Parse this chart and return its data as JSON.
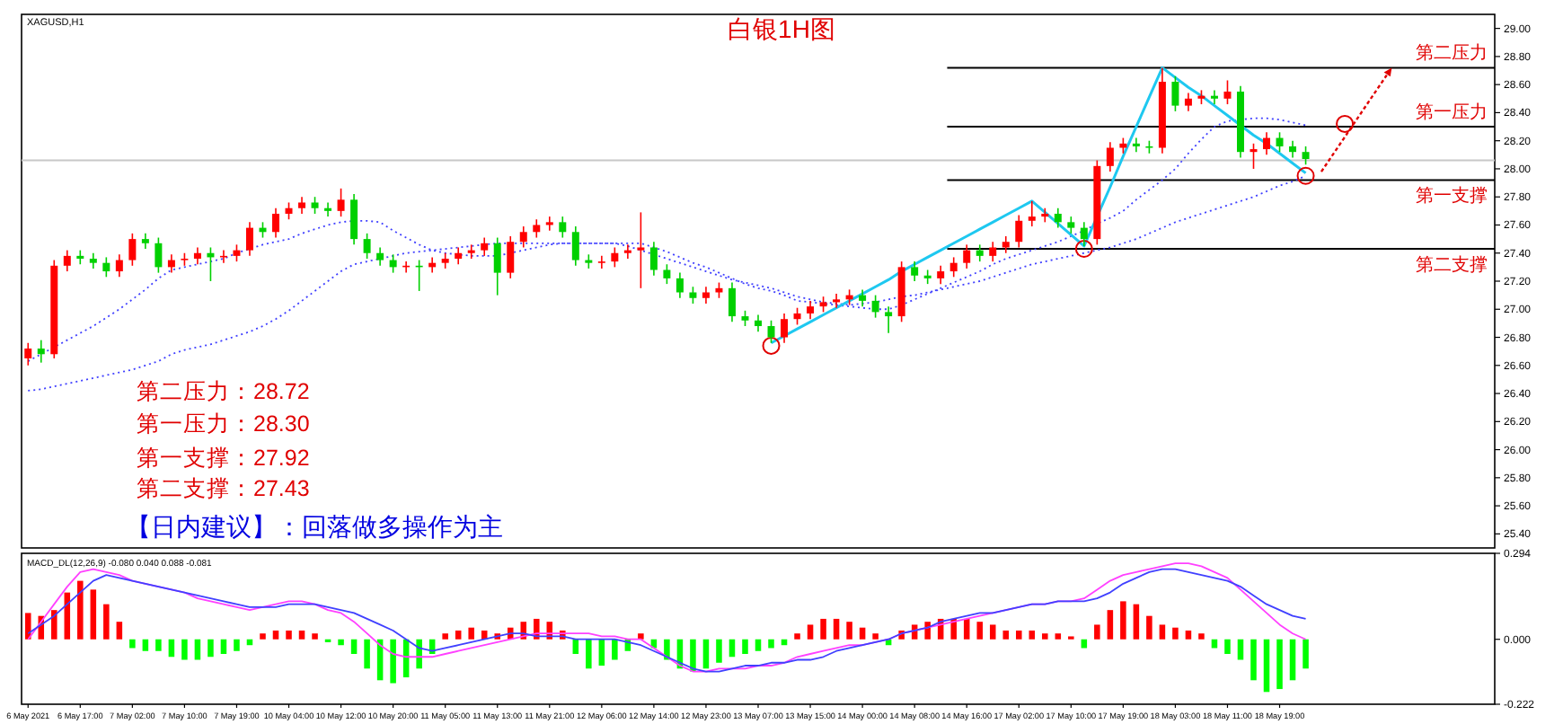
{
  "chart_data": [
    {
      "type": "candlestick",
      "title": "白银1H图",
      "subtitle": "XAGUSD,H1",
      "annotations": [
        "第二压力：28.72",
        "第一压力：28.30",
        "第一支撑：27.92",
        "第二支撑：27.43",
        "【日内建议】：回落做多操作为主"
      ],
      "categories": [
        null,
        null,
        null,
        null,
        null,
        null,
        null,
        null,
        null,
        null,
        null,
        null,
        null,
        null,
        null,
        null,
        null,
        null,
        null,
        null,
        null,
        null,
        null,
        null,
        null,
        null,
        null,
        null,
        null,
        null,
        null,
        null,
        null,
        null,
        null,
        null,
        null,
        null,
        null,
        null,
        null,
        null,
        null,
        null,
        null,
        null,
        null,
        null,
        null,
        null,
        null,
        null,
        null,
        null,
        null,
        null,
        null,
        null,
        null,
        null,
        null,
        null,
        null,
        null,
        null,
        null,
        null,
        null,
        null,
        null,
        null,
        null,
        null,
        null,
        null,
        null,
        null,
        null,
        null,
        null,
        null,
        null,
        null,
        null,
        null,
        null,
        null,
        null,
        null,
        null,
        null,
        null,
        null,
        null,
        null,
        null,
        null,
        null,
        null,
        null,
        null,
        null,
        null,
        null,
        null,
        null,
        null,
        null,
        null,
        null,
        null,
        null,
        null
      ],
      "ohlc": [
        [
          26.65,
          26.76,
          26.6,
          26.72
        ],
        [
          26.72,
          26.78,
          26.62,
          26.68
        ],
        [
          26.68,
          27.35,
          26.65,
          27.31
        ],
        [
          27.31,
          27.42,
          27.27,
          27.38
        ],
        [
          27.38,
          27.42,
          27.32,
          27.36
        ],
        [
          27.36,
          27.4,
          27.29,
          27.33
        ],
        [
          27.33,
          27.37,
          27.23,
          27.27
        ],
        [
          27.27,
          27.39,
          27.23,
          27.35
        ],
        [
          27.35,
          27.54,
          27.31,
          27.5
        ],
        [
          27.5,
          27.54,
          27.43,
          27.47
        ],
        [
          27.47,
          27.51,
          27.26,
          27.3
        ],
        [
          27.3,
          27.39,
          27.26,
          27.35
        ],
        [
          27.35,
          27.4,
          27.31,
          27.36
        ],
        [
          27.36,
          27.44,
          27.32,
          27.4
        ],
        [
          27.4,
          27.44,
          27.2,
          27.37
        ],
        [
          27.37,
          27.42,
          27.33,
          27.38
        ],
        [
          27.38,
          27.46,
          27.34,
          27.42
        ],
        [
          27.42,
          27.62,
          27.38,
          27.58
        ],
        [
          27.58,
          27.62,
          27.51,
          27.55
        ],
        [
          27.55,
          27.72,
          27.51,
          27.68
        ],
        [
          27.68,
          27.76,
          27.64,
          27.72
        ],
        [
          27.72,
          27.8,
          27.68,
          27.76
        ],
        [
          27.76,
          27.8,
          27.68,
          27.72
        ],
        [
          27.72,
          27.76,
          27.66,
          27.7
        ],
        [
          27.7,
          27.86,
          27.66,
          27.78
        ],
        [
          27.78,
          27.82,
          27.46,
          27.5
        ],
        [
          27.5,
          27.54,
          27.36,
          27.4
        ],
        [
          27.4,
          27.44,
          27.31,
          27.35
        ],
        [
          27.35,
          27.39,
          27.26,
          27.3
        ],
        [
          27.3,
          27.34,
          27.26,
          27.31
        ],
        [
          27.31,
          27.35,
          27.13,
          27.3
        ],
        [
          27.3,
          27.37,
          27.26,
          27.33
        ],
        [
          27.33,
          27.4,
          27.29,
          27.36
        ],
        [
          27.36,
          27.44,
          27.32,
          27.4
        ],
        [
          27.4,
          27.46,
          27.36,
          27.42
        ],
        [
          27.42,
          27.51,
          27.38,
          27.47
        ],
        [
          27.47,
          27.51,
          27.1,
          27.26
        ],
        [
          27.26,
          27.52,
          27.22,
          27.48
        ],
        [
          27.48,
          27.59,
          27.44,
          27.55
        ],
        [
          27.55,
          27.64,
          27.51,
          27.6
        ],
        [
          27.6,
          27.66,
          27.56,
          27.62
        ],
        [
          27.62,
          27.66,
          27.51,
          27.55
        ],
        [
          27.55,
          27.59,
          27.31,
          27.35
        ],
        [
          27.35,
          27.39,
          27.29,
          27.33
        ],
        [
          27.33,
          27.38,
          27.29,
          27.34
        ],
        [
          27.34,
          27.44,
          27.3,
          27.4
        ],
        [
          27.4,
          27.46,
          27.36,
          27.42
        ],
        [
          27.42,
          27.69,
          27.15,
          27.44
        ],
        [
          27.44,
          27.48,
          27.24,
          27.28
        ],
        [
          27.28,
          27.32,
          27.18,
          27.22
        ],
        [
          27.22,
          27.26,
          27.08,
          27.12
        ],
        [
          27.12,
          27.16,
          27.04,
          27.08
        ],
        [
          27.08,
          27.16,
          27.04,
          27.12
        ],
        [
          27.12,
          27.19,
          27.08,
          27.15
        ],
        [
          27.15,
          27.19,
          26.91,
          26.95
        ],
        [
          26.95,
          26.99,
          26.88,
          26.92
        ],
        [
          26.92,
          26.96,
          26.84,
          26.88
        ],
        [
          26.88,
          26.92,
          26.76,
          26.8
        ],
        [
          26.8,
          26.97,
          26.76,
          26.93
        ],
        [
          26.93,
          27.01,
          26.89,
          26.97
        ],
        [
          26.97,
          27.06,
          26.93,
          27.02
        ],
        [
          27.02,
          27.09,
          26.98,
          27.05
        ],
        [
          27.05,
          27.11,
          27.01,
          27.07
        ],
        [
          27.07,
          27.14,
          27.03,
          27.1
        ],
        [
          27.1,
          27.14,
          27.02,
          27.06
        ],
        [
          27.06,
          27.1,
          26.94,
          26.98
        ],
        [
          26.98,
          27.02,
          26.83,
          26.95
        ],
        [
          26.95,
          27.34,
          26.91,
          27.3
        ],
        [
          27.3,
          27.34,
          27.2,
          27.24
        ],
        [
          27.24,
          27.28,
          27.18,
          27.22
        ],
        [
          27.22,
          27.31,
          27.18,
          27.27
        ],
        [
          27.27,
          27.37,
          27.23,
          27.33
        ],
        [
          27.33,
          27.46,
          27.29,
          27.42
        ],
        [
          27.42,
          27.46,
          27.34,
          27.38
        ],
        [
          27.38,
          27.48,
          27.34,
          27.44
        ],
        [
          27.44,
          27.52,
          27.4,
          27.48
        ],
        [
          27.48,
          27.67,
          27.44,
          27.63
        ],
        [
          27.63,
          27.77,
          27.59,
          27.66
        ],
        [
          27.66,
          27.72,
          27.62,
          27.68
        ],
        [
          27.68,
          27.72,
          27.58,
          27.62
        ],
        [
          27.62,
          27.66,
          27.54,
          27.58
        ],
        [
          27.58,
          27.62,
          27.45,
          27.5
        ],
        [
          27.5,
          28.06,
          27.46,
          28.02
        ],
        [
          28.02,
          28.19,
          27.98,
          28.15
        ],
        [
          28.15,
          28.22,
          28.11,
          28.18
        ],
        [
          28.18,
          28.22,
          28.12,
          28.16
        ],
        [
          28.16,
          28.2,
          28.11,
          28.15
        ],
        [
          28.15,
          28.72,
          28.11,
          28.62
        ],
        [
          28.62,
          28.66,
          28.41,
          28.45
        ],
        [
          28.45,
          28.54,
          28.41,
          28.5
        ],
        [
          28.5,
          28.56,
          28.46,
          28.52
        ],
        [
          28.52,
          28.56,
          28.46,
          28.5
        ],
        [
          28.5,
          28.63,
          28.46,
          28.55
        ],
        [
          28.55,
          28.59,
          28.08,
          28.12
        ],
        [
          28.12,
          28.18,
          28.0,
          28.14
        ],
        [
          28.14,
          28.26,
          28.1,
          28.22
        ],
        [
          28.22,
          28.26,
          28.12,
          28.16
        ],
        [
          28.16,
          28.2,
          28.08,
          28.12
        ],
        [
          28.12,
          28.16,
          28.03,
          28.07
        ],
        null,
        null,
        null,
        null,
        null,
        null,
        null,
        null,
        null,
        null,
        null,
        null,
        null,
        null
      ],
      "colors": [
        "#ff0000",
        "#00d000",
        "#ff0000",
        "#ff0000",
        "#00d000",
        "#00d000",
        "#00d000",
        "#ff0000",
        "#ff0000",
        "#00d000",
        "#00d000",
        "#ff0000",
        "#ff0000",
        "#ff0000",
        "#00d000",
        "#ff0000",
        "#ff0000",
        "#ff0000",
        "#00d000",
        "#ff0000",
        "#ff0000",
        "#ff0000",
        "#00d000",
        "#00d000",
        "#ff0000",
        "#00d000",
        "#00d000",
        "#00d000",
        "#00d000",
        "#ff0000",
        "#00d000",
        "#ff0000",
        "#ff0000",
        "#ff0000",
        "#ff0000",
        "#ff0000",
        "#00d000",
        "#ff0000",
        "#ff0000",
        "#ff0000",
        "#ff0000",
        "#00d000",
        "#00d000",
        "#00d000",
        "#ff0000",
        "#ff0000",
        "#ff0000",
        "#ff0000",
        "#00d000",
        "#00d000",
        "#00d000",
        "#00d000",
        "#ff0000",
        "#ff0000",
        "#00d000",
        "#00d000",
        "#00d000",
        "#00d000",
        "#ff0000",
        "#ff0000",
        "#ff0000",
        "#ff0000",
        "#ff0000",
        "#ff0000",
        "#00d000",
        "#00d000",
        "#00d000",
        "#ff0000",
        "#00d000",
        "#00d000",
        "#ff0000",
        "#ff0000",
        "#ff0000",
        "#00d000",
        "#ff0000",
        "#ff0000",
        "#ff0000",
        "#ff0000",
        "#ff0000",
        "#00d000",
        "#00d000",
        "#00d000",
        "#ff0000",
        "#ff0000",
        "#ff0000",
        "#00d000",
        "#00d000",
        "#ff0000",
        "#00d000",
        "#ff0000",
        "#ff0000",
        "#00d000",
        "#ff0000",
        "#00d000",
        "#ff0000",
        "#ff0000",
        "#00d000",
        "#00d000",
        "#00d000",
        null,
        null,
        null,
        null,
        null,
        null,
        null,
        null,
        null,
        null,
        null,
        null,
        null,
        null
      ],
      "series": [
        {
          "type": "line",
          "color": "#4040ff",
          "line_style": "dotted",
          "values": [
            26.63,
            26.68,
            26.73,
            26.78,
            26.83,
            26.88,
            26.94,
            27.0,
            27.07,
            27.14,
            27.22,
            27.28,
            27.3,
            27.32,
            27.34,
            27.36,
            27.4,
            27.43,
            27.46,
            27.48,
            27.5,
            27.54,
            27.57,
            27.6,
            27.62,
            27.63,
            27.63,
            27.62,
            27.56,
            27.51,
            27.46,
            27.42,
            27.4,
            27.39,
            27.38,
            27.38,
            27.38,
            27.4,
            27.42,
            27.44,
            27.46,
            27.47,
            27.47,
            27.47,
            27.47,
            27.47,
            27.47,
            27.47,
            27.44,
            27.41,
            27.37,
            27.33,
            27.3,
            27.26,
            27.22,
            27.18,
            27.15,
            27.13,
            27.1,
            27.06,
            27.05,
            27.04,
            27.03,
            27.02,
            27.01,
            27.0,
            27.0,
            27.03,
            27.07,
            27.11,
            27.15,
            27.19,
            27.23,
            27.27,
            27.32,
            27.36,
            27.39,
            27.42,
            27.45,
            27.48,
            27.52,
            27.56,
            27.61,
            27.65,
            27.7,
            27.78,
            27.85,
            27.92,
            28.0,
            28.11,
            28.21,
            28.3,
            28.34,
            28.35,
            28.36,
            28.36,
            28.35,
            28.33,
            28.31,
            null,
            null,
            null,
            null,
            null,
            null,
            null,
            null,
            null,
            null,
            null,
            null,
            null,
            null
          ]
        },
        {
          "type": "line",
          "color": "#4040ff",
          "line_style": "dotted",
          "values": [
            26.42,
            26.43,
            26.45,
            26.47,
            26.49,
            26.51,
            26.53,
            26.55,
            26.57,
            26.6,
            26.63,
            26.68,
            26.71,
            26.73,
            26.75,
            26.78,
            26.81,
            26.84,
            26.88,
            26.93,
            26.99,
            27.06,
            27.13,
            27.2,
            27.27,
            27.32,
            27.34,
            27.36,
            27.38,
            27.4,
            27.41,
            27.42,
            27.43,
            27.44,
            27.45,
            27.46,
            27.47,
            27.47,
            27.47,
            27.47,
            27.47,
            27.47,
            27.47,
            27.47,
            27.47,
            27.47,
            27.45,
            27.42,
            27.39,
            27.36,
            27.33,
            27.3,
            27.27,
            27.24,
            27.21,
            27.19,
            27.17,
            27.15,
            27.12,
            27.09,
            27.07,
            27.05,
            27.04,
            27.03,
            27.04,
            27.05,
            27.07,
            27.09,
            27.1,
            27.12,
            27.14,
            27.16,
            27.18,
            27.2,
            27.23,
            27.26,
            27.29,
            27.32,
            27.34,
            27.36,
            27.38,
            27.4,
            27.42,
            27.44,
            27.47,
            27.5,
            27.54,
            27.58,
            27.62,
            27.65,
            27.68,
            27.71,
            27.74,
            27.77,
            27.8,
            27.84,
            27.88,
            27.91,
            27.95,
            null,
            null,
            null,
            null,
            null,
            null,
            null,
            null,
            null,
            null,
            null,
            null,
            null,
            null
          ]
        },
        {
          "type": "line",
          "color": "#1ec8f0",
          "values": [
            null,
            null,
            null,
            null,
            null,
            null,
            null,
            null,
            null,
            null,
            null,
            null,
            null,
            null,
            null,
            null,
            null,
            null,
            null,
            null,
            null,
            null,
            null,
            null,
            null,
            null,
            null,
            null,
            null,
            null,
            null,
            null,
            null,
            null,
            null,
            null,
            null,
            null,
            null,
            null,
            null,
            null,
            null,
            null,
            null,
            null,
            null,
            null,
            null,
            null,
            null,
            null,
            null,
            null,
            null,
            null,
            null,
            26.76,
            26.81,
            26.86,
            26.91,
            26.96,
            27.01,
            27.06,
            27.11,
            27.16,
            27.21,
            27.27,
            27.32,
            27.37,
            27.42,
            27.47,
            27.52,
            27.57,
            27.62,
            27.67,
            27.72,
            27.77,
            27.69,
            27.61,
            27.53,
            27.45,
            27.66,
            27.87,
            28.09,
            28.3,
            28.51,
            28.72,
            28.65,
            28.58,
            28.52,
            28.45,
            28.38,
            28.31,
            28.24,
            28.18,
            28.11,
            28.04,
            27.97,
            null,
            null,
            null,
            null,
            null,
            null,
            null,
            null,
            null,
            null,
            null,
            null,
            null,
            null
          ]
        },
        {
          "type": "scatter",
          "color": "#e00000",
          "marker": "circle",
          "values": [
            null,
            null,
            null,
            null,
            null,
            null,
            null,
            null,
            null,
            null,
            null,
            null,
            null,
            null,
            null,
            null,
            null,
            null,
            null,
            null,
            null,
            null,
            null,
            null,
            null,
            null,
            null,
            null,
            null,
            null,
            null,
            null,
            null,
            null,
            null,
            null,
            null,
            null,
            null,
            null,
            null,
            null,
            null,
            null,
            null,
            null,
            null,
            null,
            null,
            null,
            null,
            null,
            null,
            null,
            null,
            null,
            null,
            26.74,
            null,
            null,
            null,
            null,
            null,
            null,
            null,
            null,
            null,
            null,
            null,
            null,
            null,
            null,
            null,
            null,
            null,
            null,
            null,
            null,
            null,
            null,
            null,
            27.43,
            null,
            null,
            null,
            null,
            null,
            null,
            null,
            null,
            null,
            null,
            null,
            null,
            null,
            null,
            null,
            null,
            27.95,
            null,
            null,
            28.32,
            null,
            null,
            null,
            null,
            null,
            null,
            null,
            null,
            null,
            null,
            null
          ]
        }
      ],
      "ref_lines": [
        {
          "axis": "y",
          "value": 28.72,
          "label": "第二压力",
          "color": "#000000"
        },
        {
          "axis": "y",
          "value": 28.3,
          "label": "第一压力",
          "color": "#000000"
        },
        {
          "axis": "y",
          "value": 27.92,
          "label": "第一支撑",
          "color": "#000000"
        },
        {
          "axis": "y",
          "value": 27.43,
          "label": "第二支撑",
          "color": "#000000"
        },
        {
          "axis": "y",
          "value": 28.06,
          "color": "#c8c8c8"
        }
      ],
      "ylim": [
        25.3,
        29.1
      ],
      "yticks": [
        {
          "value": 25.4,
          "label": "25.40"
        },
        {
          "value": 25.6,
          "label": "25.60"
        },
        {
          "value": 25.8,
          "label": "25.80"
        },
        {
          "value": 26.0,
          "label": "26.00"
        },
        {
          "value": 26.2,
          "label": "26.20"
        },
        {
          "value": 26.4,
          "label": "26.40"
        },
        {
          "value": 26.6,
          "label": "26.60"
        },
        {
          "value": 26.8,
          "label": "26.80"
        },
        {
          "value": 27.0,
          "label": "27.00"
        },
        {
          "value": 27.2,
          "label": "27.20"
        },
        {
          "value": 27.4,
          "label": "27.40"
        },
        {
          "value": 27.6,
          "label": "27.60"
        },
        {
          "value": 27.8,
          "label": "27.80"
        },
        {
          "value": 28.0,
          "label": "28.00"
        },
        {
          "value": 28.2,
          "label": "28.20"
        },
        {
          "value": 28.4,
          "label": "28.40"
        },
        {
          "value": 28.6,
          "label": "28.60"
        },
        {
          "value": 28.8,
          "label": "28.80"
        },
        {
          "value": 29.0,
          "label": "29.00"
        }
      ],
      "tick_labels": "y"
    },
    {
      "type": "bar",
      "title": "MACD_DL(12,26,9) -0.080 0.040 0.088 -0.081",
      "categories": [
        "6 May 2021",
        null,
        null,
        null,
        "6 May 17:00",
        null,
        null,
        null,
        "7 May 02:00",
        null,
        null,
        null,
        "7 May 10:00",
        null,
        null,
        null,
        "7 May 19:00",
        null,
        null,
        null,
        "10 May 04:00",
        null,
        null,
        null,
        "10 May 12:00",
        null,
        null,
        null,
        "10 May 20:00",
        null,
        null,
        null,
        "11 May 05:00",
        null,
        null,
        null,
        "11 May 13:00",
        null,
        null,
        null,
        "11 May 21:00",
        null,
        null,
        null,
        "12 May 06:00",
        null,
        null,
        null,
        "12 May 14:00",
        null,
        null,
        null,
        "12 May 23:00",
        null,
        null,
        null,
        "13 May 07:00",
        null,
        null,
        null,
        "13 May 15:00",
        null,
        null,
        null,
        "14 May 00:00",
        null,
        null,
        null,
        "14 May 08:00",
        null,
        null,
        null,
        "14 May 16:00",
        null,
        null,
        null,
        "17 May 02:00",
        null,
        null,
        null,
        "17 May 10:00",
        null,
        null,
        null,
        "17 May 19:00",
        null,
        null,
        null,
        "18 May 03:00",
        null,
        null,
        null,
        "18 May 11:00",
        null,
        null,
        null,
        "18 May 19:00",
        null,
        null,
        null,
        null,
        null,
        null,
        null,
        null,
        null,
        null,
        null,
        null,
        null,
        null,
        null,
        null
      ],
      "series": [
        {
          "type": "bar",
          "values": [
            0.09,
            0.08,
            0.1,
            0.16,
            0.2,
            0.17,
            0.12,
            0.06,
            -0.03,
            -0.04,
            -0.04,
            -0.06,
            -0.07,
            -0.07,
            -0.06,
            -0.05,
            -0.04,
            -0.02,
            0.02,
            0.03,
            0.03,
            0.03,
            0.02,
            -0.01,
            -0.02,
            -0.05,
            -0.1,
            -0.14,
            -0.15,
            -0.13,
            -0.1,
            -0.05,
            0.02,
            0.03,
            0.04,
            0.03,
            0.02,
            0.04,
            0.06,
            0.07,
            0.06,
            0.03,
            -0.05,
            -0.1,
            -0.09,
            -0.07,
            -0.04,
            0.02,
            -0.03,
            -0.07,
            -0.1,
            -0.11,
            -0.1,
            -0.08,
            -0.06,
            -0.05,
            -0.04,
            -0.03,
            -0.02,
            0.02,
            0.05,
            0.07,
            0.07,
            0.06,
            0.04,
            0.02,
            -0.02,
            0.03,
            0.05,
            0.06,
            0.07,
            0.07,
            0.07,
            0.06,
            0.05,
            0.03,
            0.03,
            0.03,
            0.02,
            0.02,
            0.01,
            -0.03,
            0.05,
            0.1,
            0.13,
            0.12,
            0.08,
            0.05,
            0.04,
            0.03,
            0.02,
            -0.03,
            -0.05,
            -0.07,
            -0.14,
            -0.18,
            -0.17,
            -0.14,
            -0.1,
            null,
            null,
            null,
            null,
            null,
            null,
            null,
            null,
            null,
            null,
            null,
            null,
            null,
            null
          ],
          "colors": [
            "#ff0000",
            "#ff0000",
            "#ff0000",
            "#ff0000",
            "#ff0000",
            "#ff0000",
            "#ff0000",
            "#ff0000",
            "#00ff00",
            "#00ff00",
            "#00ff00",
            "#00ff00",
            "#00ff00",
            "#00ff00",
            "#00ff00",
            "#00ff00",
            "#00ff00",
            "#00ff00",
            "#ff0000",
            "#ff0000",
            "#ff0000",
            "#ff0000",
            "#ff0000",
            "#00ff00",
            "#00ff00",
            "#00ff00",
            "#00ff00",
            "#00ff00",
            "#00ff00",
            "#00ff00",
            "#00ff00",
            "#00ff00",
            "#ff0000",
            "#ff0000",
            "#ff0000",
            "#ff0000",
            "#ff0000",
            "#ff0000",
            "#ff0000",
            "#ff0000",
            "#ff0000",
            "#ff0000",
            "#00ff00",
            "#00ff00",
            "#00ff00",
            "#00ff00",
            "#00ff00",
            "#ff0000",
            "#00ff00",
            "#00ff00",
            "#00ff00",
            "#00ff00",
            "#00ff00",
            "#00ff00",
            "#00ff00",
            "#00ff00",
            "#00ff00",
            "#00ff00",
            "#00ff00",
            "#ff0000",
            "#ff0000",
            "#ff0000",
            "#ff0000",
            "#ff0000",
            "#ff0000",
            "#ff0000",
            "#00ff00",
            "#ff0000",
            "#ff0000",
            "#ff0000",
            "#ff0000",
            "#ff0000",
            "#ff0000",
            "#ff0000",
            "#ff0000",
            "#ff0000",
            "#ff0000",
            "#ff0000",
            "#ff0000",
            "#ff0000",
            "#ff0000",
            "#00ff00",
            "#ff0000",
            "#ff0000",
            "#ff0000",
            "#ff0000",
            "#ff0000",
            "#ff0000",
            "#ff0000",
            "#ff0000",
            "#ff0000",
            "#00ff00",
            "#00ff00",
            "#00ff00",
            "#00ff00",
            "#00ff00",
            "#00ff00",
            "#00ff00",
            "#00ff00",
            null,
            null,
            null,
            null,
            null,
            null,
            null,
            null,
            null,
            null,
            null,
            null,
            null,
            null
          ]
        },
        {
          "type": "line",
          "color": "#ff40ff",
          "values": [
            0.0,
            0.06,
            0.12,
            0.18,
            0.23,
            0.24,
            0.23,
            0.22,
            0.2,
            0.19,
            0.18,
            0.17,
            0.16,
            0.14,
            0.13,
            0.12,
            0.11,
            0.1,
            0.11,
            0.12,
            0.13,
            0.13,
            0.12,
            0.1,
            0.09,
            0.06,
            0.02,
            -0.02,
            -0.05,
            -0.06,
            -0.06,
            -0.06,
            -0.05,
            -0.04,
            -0.03,
            -0.02,
            -0.01,
            0.0,
            0.01,
            0.02,
            0.02,
            0.02,
            0.02,
            0.02,
            0.01,
            0.01,
            0.0,
            0.0,
            -0.03,
            -0.06,
            -0.09,
            -0.11,
            -0.11,
            -0.1,
            -0.1,
            -0.1,
            -0.09,
            -0.09,
            -0.08,
            -0.06,
            -0.05,
            -0.04,
            -0.03,
            -0.02,
            -0.02,
            -0.01,
            0.0,
            0.02,
            0.03,
            0.04,
            0.05,
            0.06,
            0.07,
            0.08,
            0.09,
            0.1,
            0.11,
            0.12,
            0.12,
            0.13,
            0.13,
            0.14,
            0.17,
            0.2,
            0.22,
            0.23,
            0.24,
            0.25,
            0.26,
            0.26,
            0.25,
            0.23,
            0.21,
            0.17,
            0.13,
            0.09,
            0.05,
            0.02,
            0.0,
            null,
            null,
            null,
            null,
            null,
            null,
            null,
            null,
            null,
            null,
            null,
            null,
            null,
            null
          ]
        },
        {
          "type": "line",
          "color": "#4040ff",
          "values": [
            0.02,
            0.05,
            0.08,
            0.12,
            0.16,
            0.2,
            0.22,
            0.21,
            0.2,
            0.19,
            0.18,
            0.17,
            0.16,
            0.15,
            0.14,
            0.13,
            0.12,
            0.11,
            0.11,
            0.11,
            0.12,
            0.12,
            0.12,
            0.11,
            0.1,
            0.09,
            0.07,
            0.05,
            0.03,
            0.0,
            -0.03,
            -0.04,
            -0.03,
            -0.02,
            -0.01,
            0.0,
            0.01,
            0.02,
            0.02,
            0.01,
            0.01,
            0.01,
            0.0,
            0.0,
            0.0,
            0.0,
            -0.01,
            -0.02,
            -0.04,
            -0.06,
            -0.08,
            -0.1,
            -0.11,
            -0.11,
            -0.1,
            -0.09,
            -0.09,
            -0.08,
            -0.08,
            -0.07,
            -0.07,
            -0.06,
            -0.04,
            -0.03,
            -0.02,
            -0.01,
            0.0,
            0.02,
            0.03,
            0.04,
            0.06,
            0.07,
            0.08,
            0.09,
            0.09,
            0.1,
            0.11,
            0.12,
            0.12,
            0.13,
            0.13,
            0.13,
            0.14,
            0.16,
            0.19,
            0.21,
            0.23,
            0.24,
            0.24,
            0.23,
            0.22,
            0.21,
            0.2,
            0.18,
            0.15,
            0.12,
            0.1,
            0.08,
            0.07,
            null,
            null,
            null,
            null,
            null,
            null,
            null,
            null,
            null,
            null,
            null,
            null,
            null,
            null
          ]
        }
      ],
      "ylim": [
        -0.222,
        0.294
      ],
      "yticks": [
        {
          "value": -0.222,
          "label": "-0.222"
        },
        {
          "value": 0,
          "label": "0.000"
        },
        {
          "value": 0.294,
          "label": "0.294"
        }
      ]
    }
  ]
}
